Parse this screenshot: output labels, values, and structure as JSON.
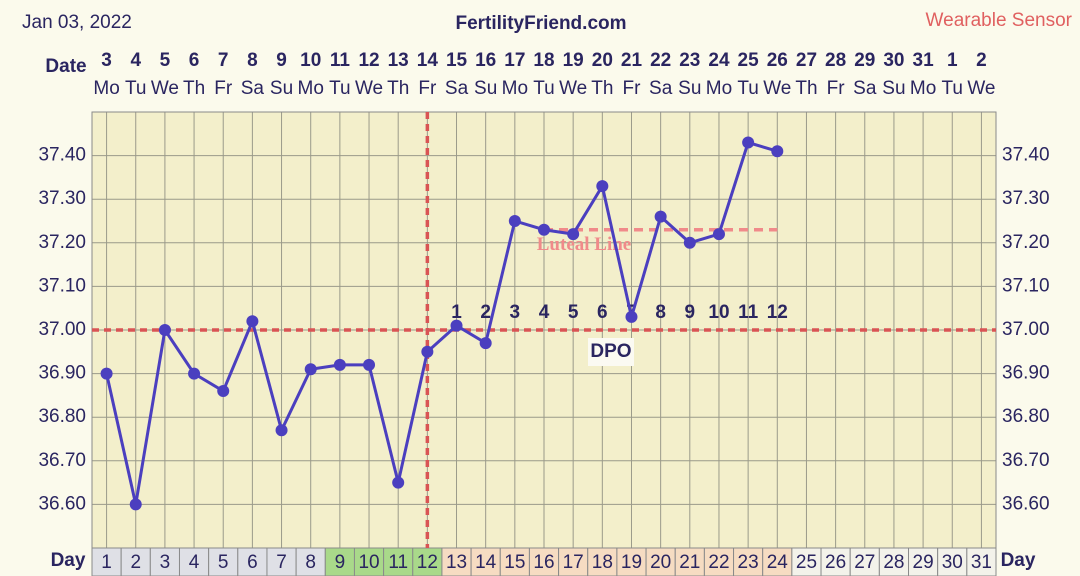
{
  "chart_data": {
    "type": "line",
    "title": "FertilityFriend.com",
    "chart_date": "Jan 03, 2022",
    "source": "Wearable Sensor",
    "date_label": "Date",
    "day_label": "Day",
    "dates": [
      3,
      4,
      5,
      6,
      7,
      8,
      9,
      10,
      11,
      12,
      13,
      14,
      15,
      16,
      17,
      18,
      19,
      20,
      21,
      22,
      23,
      24,
      25,
      26,
      27,
      28,
      29,
      30,
      31,
      1,
      2
    ],
    "weekdays": [
      "Mo",
      "Tu",
      "We",
      "Th",
      "Fr",
      "Sa",
      "Su",
      "Mo",
      "Tu",
      "We",
      "Th",
      "Fr",
      "Sa",
      "Su",
      "Mo",
      "Tu",
      "We",
      "Th",
      "Fr",
      "Sa",
      "Su",
      "Mo",
      "Tu",
      "We",
      "Th",
      "Fr",
      "Sa",
      "Su",
      "Mo",
      "Tu",
      "We"
    ],
    "x": [
      1,
      2,
      3,
      4,
      5,
      6,
      7,
      8,
      9,
      10,
      11,
      12,
      13,
      14,
      15,
      16,
      17,
      18,
      19,
      20,
      21,
      22,
      23,
      24,
      25,
      26,
      27,
      28,
      29,
      30,
      31
    ],
    "xlim": [
      0.5,
      31.5
    ],
    "day_colors": [
      "#dfe0e6",
      "#dfe0e6",
      "#dfe0e6",
      "#dfe0e6",
      "#dfe0e6",
      "#dfe0e6",
      "#dfe0e6",
      "#dfe0e6",
      "#a9d98a",
      "#a9d98a",
      "#a9d98a",
      "#a9d98a",
      "#f6dcc2",
      "#f6dcc2",
      "#f6dcc2",
      "#f6dcc2",
      "#f6dcc2",
      "#f6dcc2",
      "#f6dcc2",
      "#f6dcc2",
      "#f6dcc2",
      "#f6dcc2",
      "#f6dcc2",
      "#f6dcc2",
      "#f3f2ea",
      "#f3f2ea",
      "#f3f2ea",
      "#f3f2ea",
      "#f3f2ea",
      "#f3f2ea",
      "#f3f2ea"
    ],
    "series": [
      {
        "name": "Temperature",
        "color": "#4b3fbf",
        "values": [
          36.9,
          36.6,
          37.0,
          36.9,
          36.86,
          37.02,
          36.77,
          36.91,
          36.92,
          36.92,
          36.65,
          36.95,
          37.01,
          36.97,
          37.25,
          37.23,
          37.22,
          37.33,
          37.03,
          37.26,
          37.2,
          37.22,
          37.43,
          37.41,
          null,
          null,
          null,
          null,
          null,
          null,
          null
        ]
      }
    ],
    "ylim": [
      36.5,
      37.5
    ],
    "yticks": [
      {
        "value": 36.6,
        "label": "36.60"
      },
      {
        "value": 36.7,
        "label": "36.70"
      },
      {
        "value": 36.8,
        "label": "36.80"
      },
      {
        "value": 36.9,
        "label": "36.90"
      },
      {
        "value": 37.0,
        "label": "37.00"
      },
      {
        "value": 37.1,
        "label": "37.10"
      },
      {
        "value": 37.2,
        "label": "37.20"
      },
      {
        "value": 37.3,
        "label": "37.30"
      },
      {
        "value": 37.4,
        "label": "37.40"
      }
    ],
    "grid": true,
    "coverline": 37.0,
    "ovulation_day": 12,
    "luteal_line": {
      "label": "Luteal Line",
      "value": 37.23,
      "from": 16,
      "to": 24
    },
    "dpo_label": "DPO",
    "dpo": [
      null,
      null,
      null,
      null,
      null,
      null,
      null,
      null,
      null,
      null,
      null,
      null,
      1,
      2,
      3,
      4,
      5,
      6,
      7,
      8,
      9,
      10,
      11,
      12,
      null,
      null,
      null,
      null,
      null,
      null,
      null
    ]
  }
}
